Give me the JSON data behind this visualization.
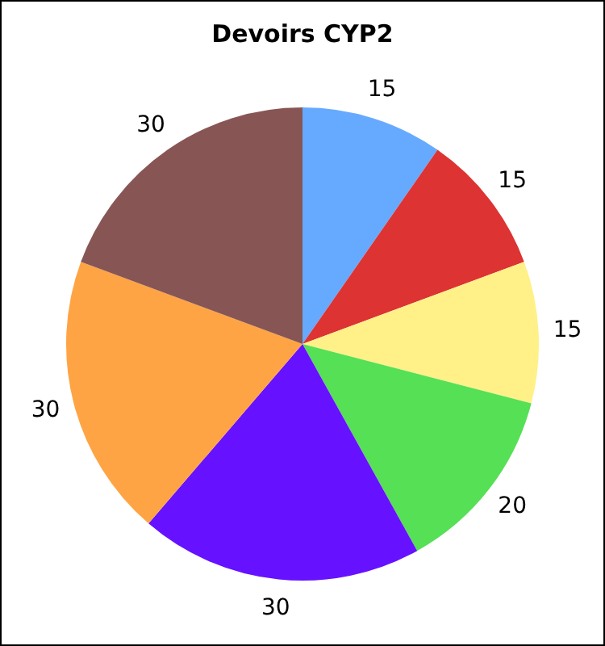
{
  "chart_data": {
    "type": "pie",
    "title": "Devoirs CYP2",
    "categories": [
      null,
      null,
      null,
      null,
      null,
      null,
      null
    ],
    "values": [
      15,
      15,
      15,
      20,
      30,
      30,
      30
    ],
    "colors": [
      "#66aaff",
      "#dd3333",
      "#fff088",
      "#55e055",
      "#6611ff",
      "#ffa444",
      "#885555"
    ],
    "data_labels": true,
    "legend": false
  }
}
